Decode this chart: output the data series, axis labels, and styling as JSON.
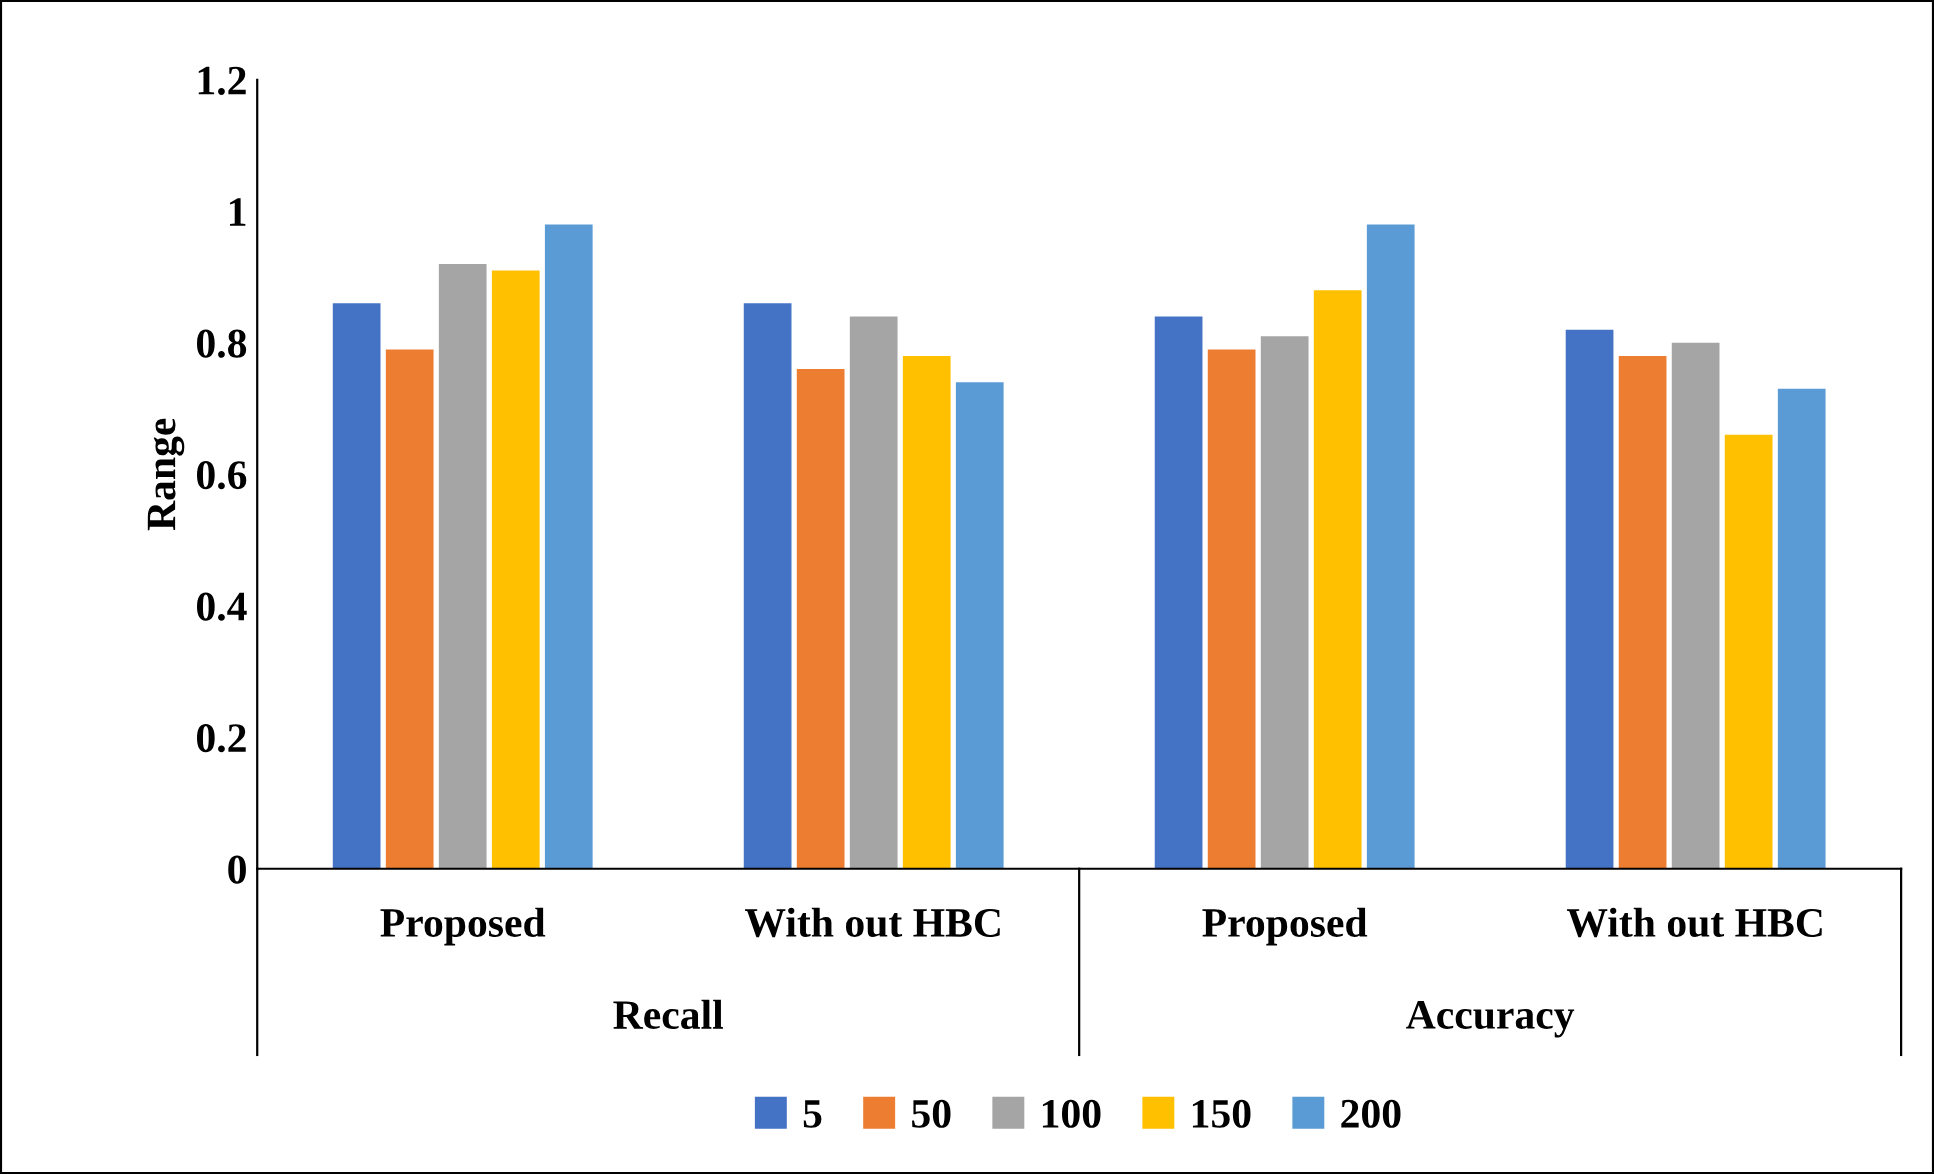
{
  "chart_data": {
    "type": "bar",
    "ylabel": "Range",
    "categories": [
      "Proposed",
      "With out HBC",
      "Proposed",
      "With out HBC"
    ],
    "annotations": [
      "Recall",
      "Accuracy"
    ],
    "series": [
      {
        "name": "5",
        "color": "#4472c4",
        "values": [
          0.86,
          0.86,
          0.84,
          0.82
        ]
      },
      {
        "name": "50",
        "color": "#ed7d31",
        "values": [
          0.79,
          0.76,
          0.79,
          0.78
        ]
      },
      {
        "name": "100",
        "color": "#a5a5a5",
        "values": [
          0.92,
          0.84,
          0.81,
          0.8
        ]
      },
      {
        "name": "150",
        "color": "#ffc000",
        "values": [
          0.91,
          0.78,
          0.88,
          0.66
        ]
      },
      {
        "name": "200",
        "color": "#5b9bd5",
        "values": [
          0.98,
          0.74,
          0.98,
          0.73
        ]
      }
    ],
    "ylim": [
      0,
      1.2
    ],
    "yticks": [
      0,
      0.2,
      0.4,
      0.6,
      0.8,
      1,
      1.2
    ],
    "grid": false,
    "legend": "bottom"
  }
}
